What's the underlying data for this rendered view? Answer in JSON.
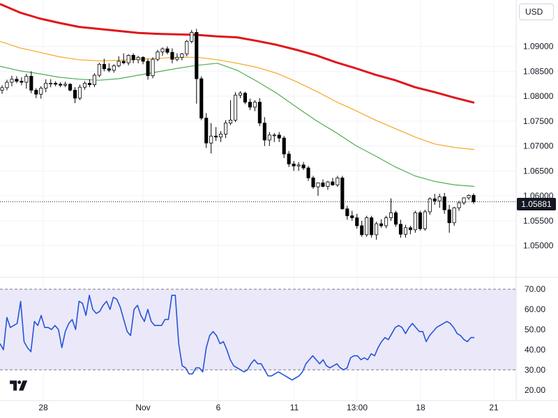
{
  "currency_selector": {
    "label": "USD"
  },
  "last_price_label": "1.05881",
  "colors": {
    "up_candle": "#ffffff",
    "down_candle": "#000000",
    "candle_outline": "#000000",
    "ma_long": "#e0161a",
    "ma_mid": "#f5a623",
    "ma_short": "#4caf50",
    "rsi_line": "#2455d6",
    "rsi_band": "#ebe8fa",
    "grid": "#f0f3fa",
    "axis_text": "#131722",
    "band_dash": "#787b86"
  },
  "chart_data": [
    {
      "type": "candlestick",
      "pair_currency": "USD",
      "y_ticks": [
        "1.09000",
        "1.08500",
        "1.08000",
        "1.07500",
        "1.07000",
        "1.06500",
        "1.06000",
        "1.05500",
        "1.05000"
      ],
      "ylim": [
        1.0445,
        1.0993
      ],
      "x_ticks": [
        "28",
        "Nov",
        "6",
        "11",
        "13:00",
        "18",
        "21"
      ],
      "last_price": 1.05881,
      "candles": [
        [
          1.0812,
          1.0822,
          1.0805,
          1.0817
        ],
        [
          1.0817,
          1.0833,
          1.0812,
          1.0828
        ],
        [
          1.0828,
          1.0841,
          1.082,
          1.0834
        ],
        [
          1.0834,
          1.084,
          1.0826,
          1.083
        ],
        [
          1.083,
          1.0838,
          1.0822,
          1.0828
        ],
        [
          1.0828,
          1.0845,
          1.0815,
          1.084
        ],
        [
          1.084,
          1.085,
          1.0806,
          1.0812
        ],
        [
          1.0812,
          1.0816,
          1.0796,
          1.0804
        ],
        [
          1.0804,
          1.082,
          1.0795,
          1.0816
        ],
        [
          1.0816,
          1.0834,
          1.0808,
          1.0826
        ],
        [
          1.0826,
          1.0834,
          1.0818,
          1.0826
        ],
        [
          1.0826,
          1.083,
          1.082,
          1.0824
        ],
        [
          1.0824,
          1.0828,
          1.0818,
          1.0822
        ],
        [
          1.0822,
          1.0829,
          1.0818,
          1.0824
        ],
        [
          1.0824,
          1.0826,
          1.081,
          1.0812
        ],
        [
          1.0812,
          1.0818,
          1.0786,
          1.0796
        ],
        [
          1.0796,
          1.0823,
          1.0792,
          1.0818
        ],
        [
          1.0818,
          1.083,
          1.0813,
          1.0826
        ],
        [
          1.0826,
          1.0834,
          1.0818,
          1.0823
        ],
        [
          1.0823,
          1.0846,
          1.0818,
          1.0842
        ],
        [
          1.0842,
          1.0867,
          1.0838,
          1.0864
        ],
        [
          1.0864,
          1.0875,
          1.085,
          1.0855
        ],
        [
          1.0855,
          1.0866,
          1.0848,
          1.0852
        ],
        [
          1.0852,
          1.0864,
          1.0847,
          1.0861
        ],
        [
          1.0861,
          1.088,
          1.0858,
          1.087
        ],
        [
          1.087,
          1.0886,
          1.0864,
          1.0867
        ],
        [
          1.0867,
          1.0884,
          1.0862,
          1.0882
        ],
        [
          1.0882,
          1.0886,
          1.0866,
          1.0873
        ],
        [
          1.0873,
          1.0881,
          1.0866,
          1.0878
        ],
        [
          1.0878,
          1.088,
          1.0864,
          1.087
        ],
        [
          1.087,
          1.0875,
          1.0833,
          1.0841
        ],
        [
          1.0841,
          1.0878,
          1.0836,
          1.0874
        ],
        [
          1.0874,
          1.0893,
          1.087,
          1.0889
        ],
        [
          1.0889,
          1.0898,
          1.0881,
          1.0895
        ],
        [
          1.0895,
          1.09,
          1.0884,
          1.0888
        ],
        [
          1.0888,
          1.0896,
          1.0866,
          1.0874
        ],
        [
          1.0874,
          1.0886,
          1.087,
          1.0878
        ],
        [
          1.0878,
          1.0887,
          1.0872,
          1.0885
        ],
        [
          1.0885,
          1.0913,
          1.088,
          1.091
        ],
        [
          1.091,
          1.0933,
          1.0906,
          1.0928
        ],
        [
          1.0928,
          1.0935,
          1.0785,
          1.0835
        ],
        [
          1.0835,
          1.084,
          1.0752,
          1.0756
        ],
        [
          1.0756,
          1.0766,
          1.0696,
          1.0706
        ],
        [
          1.0706,
          1.0746,
          1.0685,
          1.072
        ],
        [
          1.072,
          1.0738,
          1.071,
          1.0718
        ],
        [
          1.0718,
          1.073,
          1.0708,
          1.0724
        ],
        [
          1.0724,
          1.0752,
          1.0716,
          1.0746
        ],
        [
          1.0746,
          1.0792,
          1.0742,
          1.0752
        ],
        [
          1.0752,
          1.0808,
          1.0748,
          1.0802
        ],
        [
          1.0802,
          1.081,
          1.0796,
          1.0806
        ],
        [
          1.0806,
          1.0809,
          1.0784,
          1.0788
        ],
        [
          1.0788,
          1.0795,
          1.0772,
          1.0778
        ],
        [
          1.0778,
          1.0792,
          1.077,
          1.0788
        ],
        [
          1.0788,
          1.0796,
          1.074,
          1.0746
        ],
        [
          1.0746,
          1.0758,
          1.07,
          1.0712
        ],
        [
          1.0712,
          1.0728,
          1.07,
          1.0722
        ],
        [
          1.0722,
          1.0726,
          1.0708,
          1.0722
        ],
        [
          1.0722,
          1.0728,
          1.0708,
          1.0716
        ],
        [
          1.0716,
          1.072,
          1.0676,
          1.0684
        ],
        [
          1.0684,
          1.069,
          1.0658,
          1.0664
        ],
        [
          1.0664,
          1.067,
          1.065,
          1.066
        ],
        [
          1.066,
          1.0668,
          1.065,
          1.0662
        ],
        [
          1.0662,
          1.0668,
          1.0652,
          1.0656
        ],
        [
          1.0656,
          1.066,
          1.063,
          1.0636
        ],
        [
          1.0636,
          1.064,
          1.0614,
          1.0618
        ],
        [
          1.0618,
          1.0626,
          1.06,
          1.0626
        ],
        [
          1.0626,
          1.0633,
          1.0617,
          1.0619
        ],
        [
          1.0619,
          1.063,
          1.0612,
          1.0628
        ],
        [
          1.0628,
          1.0636,
          1.062,
          1.0622
        ],
        [
          1.0622,
          1.064,
          1.0618,
          1.0636
        ],
        [
          1.0636,
          1.064,
          1.0572,
          1.0574
        ],
        [
          1.0574,
          1.058,
          1.0552,
          1.056
        ],
        [
          1.056,
          1.057,
          1.055,
          1.0556
        ],
        [
          1.0556,
          1.0564,
          1.0534,
          1.054
        ],
        [
          1.054,
          1.055,
          1.0518,
          1.0522
        ],
        [
          1.0522,
          1.056,
          1.0518,
          1.0556
        ],
        [
          1.0556,
          1.056,
          1.0516,
          1.0522
        ],
        [
          1.0522,
          1.0548,
          1.0512,
          1.0544
        ],
        [
          1.0544,
          1.0553,
          1.0536,
          1.054
        ],
        [
          1.054,
          1.056,
          1.0535,
          1.0556
        ],
        [
          1.0556,
          1.0595,
          1.055,
          1.0566
        ],
        [
          1.0566,
          1.057,
          1.0538,
          1.0543
        ],
        [
          1.0543,
          1.0552,
          1.0516,
          1.0523
        ],
        [
          1.0523,
          1.0542,
          1.0516,
          1.0536
        ],
        [
          1.0536,
          1.054,
          1.0523,
          1.0532
        ],
        [
          1.0532,
          1.057,
          1.0526,
          1.0566
        ],
        [
          1.0566,
          1.057,
          1.053,
          1.0534
        ],
        [
          1.0534,
          1.0572,
          1.053,
          1.0568
        ],
        [
          1.0568,
          1.0597,
          1.0562,
          1.0594
        ],
        [
          1.0594,
          1.0604,
          1.0582,
          1.059
        ],
        [
          1.059,
          1.0604,
          1.0576,
          1.0598
        ],
        [
          1.0598,
          1.0606,
          1.0564,
          1.0572
        ],
        [
          1.0572,
          1.0582,
          1.0526,
          1.0546
        ],
        [
          1.0546,
          1.0578,
          1.054,
          1.0576
        ],
        [
          1.0576,
          1.059,
          1.057,
          1.0586
        ],
        [
          1.0586,
          1.0597,
          1.0582,
          1.0596
        ],
        [
          1.0596,
          1.0603,
          1.0592,
          1.0601
        ],
        [
          1.0601,
          1.0605,
          1.0584,
          1.0588
        ]
      ],
      "series": [
        {
          "color": "#e0161a",
          "values": [
            1.0985,
            1.0968,
            1.0956,
            1.0947,
            1.0939,
            1.0935,
            1.0931,
            1.0927,
            1.0925,
            1.0924,
            1.0923,
            1.092,
            1.0918,
            1.0911,
            1.0903,
            1.0893,
            1.0882,
            1.0868,
            1.0856,
            1.0843,
            1.0832,
            1.0818,
            1.0808,
            1.0797,
            1.0787
          ]
        },
        {
          "color": "#f5a623",
          "values": [
            1.091,
            1.0897,
            1.0888,
            1.0879,
            1.0873,
            1.0871,
            1.0872,
            1.0874,
            1.0876,
            1.0878,
            1.0878,
            1.0873,
            1.0866,
            1.0858,
            1.0846,
            1.0829,
            1.081,
            1.0789,
            1.0771,
            1.0752,
            1.0735,
            1.0718,
            1.0704,
            1.0697,
            1.0693
          ]
        },
        {
          "color": "#4caf50",
          "values": [
            1.086,
            1.0851,
            1.0845,
            1.0838,
            1.0834,
            1.0832,
            1.0835,
            1.0842,
            1.0849,
            1.0856,
            1.0862,
            1.0866,
            1.0852,
            1.083,
            1.0806,
            1.0778,
            1.0751,
            1.0727,
            1.0701,
            1.068,
            1.0658,
            1.064,
            1.0629,
            1.0622,
            1.0619
          ]
        }
      ]
    },
    {
      "type": "line",
      "indicator": "RSI",
      "y_ticks": [
        "70.00",
        "60.00",
        "50.00",
        "40.00",
        "30.00",
        "20.00"
      ],
      "ylim": [
        16.5,
        73.5
      ],
      "band": [
        30,
        70
      ],
      "series": [
        {
          "color": "#2455d6",
          "values": [
            43,
            40,
            56,
            51,
            52,
            53,
            64,
            44,
            41,
            39,
            54,
            52,
            57,
            51,
            51,
            50,
            52,
            50,
            41,
            49,
            53,
            55,
            50,
            64,
            63,
            57,
            67,
            60,
            58,
            59,
            62,
            64,
            60,
            66,
            65,
            61,
            55,
            49,
            47,
            60,
            62,
            57,
            54,
            60,
            54,
            52,
            52,
            52,
            55,
            55,
            67,
            67,
            43,
            32,
            31,
            28,
            28,
            31,
            31,
            29,
            41,
            47,
            49,
            47,
            43,
            44,
            40,
            35,
            32,
            31,
            30,
            29,
            30,
            33,
            35,
            33,
            33,
            30,
            27,
            27,
            28,
            29,
            28,
            27,
            26,
            25,
            26,
            27,
            29,
            33,
            35,
            37,
            35,
            33,
            35,
            32,
            31,
            32,
            33,
            31,
            30,
            31,
            36,
            37,
            37,
            35,
            36,
            35,
            38,
            37,
            41,
            44,
            46,
            45,
            48,
            51,
            52,
            51,
            48,
            51,
            53,
            51,
            49,
            49,
            44,
            47,
            49,
            51,
            52,
            53,
            54,
            53,
            51,
            48,
            47,
            45,
            44,
            46,
            46
          ]
        }
      ]
    }
  ]
}
